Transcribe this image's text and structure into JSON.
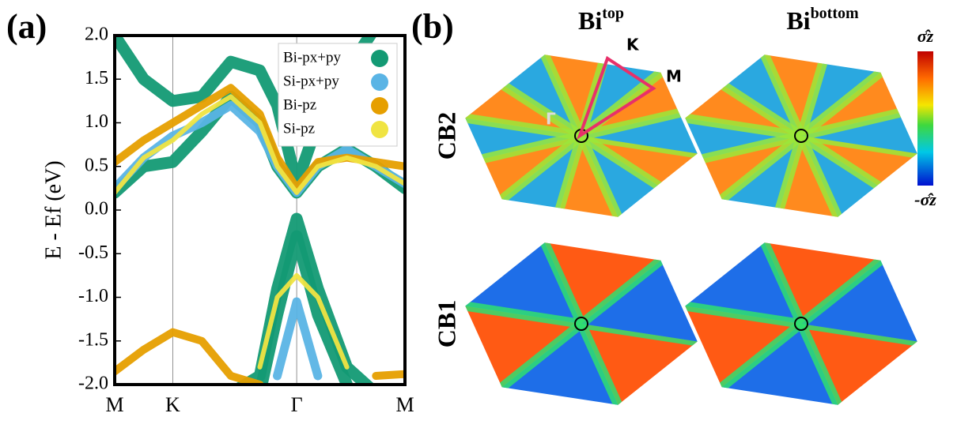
{
  "chart_data": {
    "type": "line",
    "panel_label": "(a)",
    "ylabel": "E - Ef (eV)",
    "x": [
      0,
      0.1,
      0.2,
      0.3,
      0.4,
      0.5,
      0.56,
      0.627,
      0.7,
      0.8,
      0.9,
      1
    ],
    "xlim": [
      0,
      1
    ],
    "ylim": [
      -2,
      2
    ],
    "xticks": [
      {
        "value": 0,
        "label": "M"
      },
      {
        "value": 0.2,
        "label": "K"
      },
      {
        "value": 0.627,
        "label": "Γ"
      },
      {
        "value": 1,
        "label": "M"
      }
    ],
    "yticks": [
      {
        "value": 2,
        "label": "2.0"
      },
      {
        "value": 1.5,
        "label": "1.5"
      },
      {
        "value": 1,
        "label": "1.0"
      },
      {
        "value": 0.5,
        "label": "0.5"
      },
      {
        "value": 0,
        "label": "0.0"
      },
      {
        "value": -0.5,
        "label": "-0.5"
      },
      {
        "value": -1,
        "label": "-1.0"
      },
      {
        "value": -1.5,
        "label": "-1.5"
      },
      {
        "value": -2,
        "label": "-2.0"
      }
    ],
    "legend": "upper right",
    "series": [
      {
        "name": "Bi-px+py",
        "color": "#139a74",
        "bands": [
          [
            0.2,
            0.5,
            0.55,
            0.9,
            1.3,
            1.0,
            0.5,
            0.2,
            0.5,
            0.7,
            0.5,
            0.25
          ],
          [
            2.0,
            1.5,
            1.25,
            1.3,
            1.7,
            1.6,
            1.2,
            0.3,
            1.0,
            1.6,
            2.1,
            2.2
          ],
          [
            null,
            null,
            null,
            null,
            -2.1,
            -1.9,
            -0.9,
            -0.1,
            -0.9,
            -1.8,
            -2.1,
            null
          ],
          [
            null,
            null,
            null,
            null,
            null,
            -2.1,
            -1.2,
            -0.3,
            -1.2,
            -2.0,
            null,
            null
          ]
        ]
      },
      {
        "name": "Si-px+py",
        "color": "#5ab4e5",
        "bands": [
          [
            0.25,
            0.6,
            0.85,
            1.0,
            1.2,
            0.9,
            0.5,
            0.2,
            0.5,
            0.7,
            0.5,
            0.3
          ],
          [
            null,
            null,
            null,
            null,
            null,
            null,
            -1.9,
            -1.05,
            -1.9,
            null,
            null,
            null
          ]
        ]
      },
      {
        "name": "Bi-pz",
        "color": "#e69f00",
        "bands": [
          [
            -1.85,
            -1.6,
            -1.4,
            -1.5,
            -1.9,
            -2.0,
            null,
            null,
            null,
            null,
            null,
            null
          ],
          [
            0.55,
            0.8,
            1.0,
            1.2,
            1.4,
            1.1,
            0.6,
            0.25,
            0.55,
            0.6,
            0.55,
            0.5
          ],
          [
            null,
            null,
            null,
            null,
            null,
            null,
            null,
            -1.95,
            null,
            null,
            -1.9,
            -1.88
          ]
        ]
      },
      {
        "name": "Si-pz",
        "color": "#f0e442",
        "bands": [
          [
            0.2,
            0.6,
            0.8,
            1.1,
            1.3,
            1.0,
            0.5,
            0.2,
            0.5,
            0.6,
            0.5,
            0.3
          ],
          [
            null,
            null,
            null,
            null,
            null,
            -1.8,
            -1.0,
            -0.75,
            -1.0,
            -1.8,
            null,
            null
          ]
        ]
      }
    ]
  },
  "panel_b": {
    "label": "(b)",
    "columns": [
      {
        "base": "Bi",
        "sup": "top"
      },
      {
        "base": "Bi",
        "sup": "bottom"
      }
    ],
    "rows": [
      "CB2",
      "CB1"
    ],
    "points": [
      "K",
      "M",
      "Γ"
    ],
    "colorbar": {
      "top": "σ̂z",
      "bottom": "-σ̂z"
    }
  }
}
